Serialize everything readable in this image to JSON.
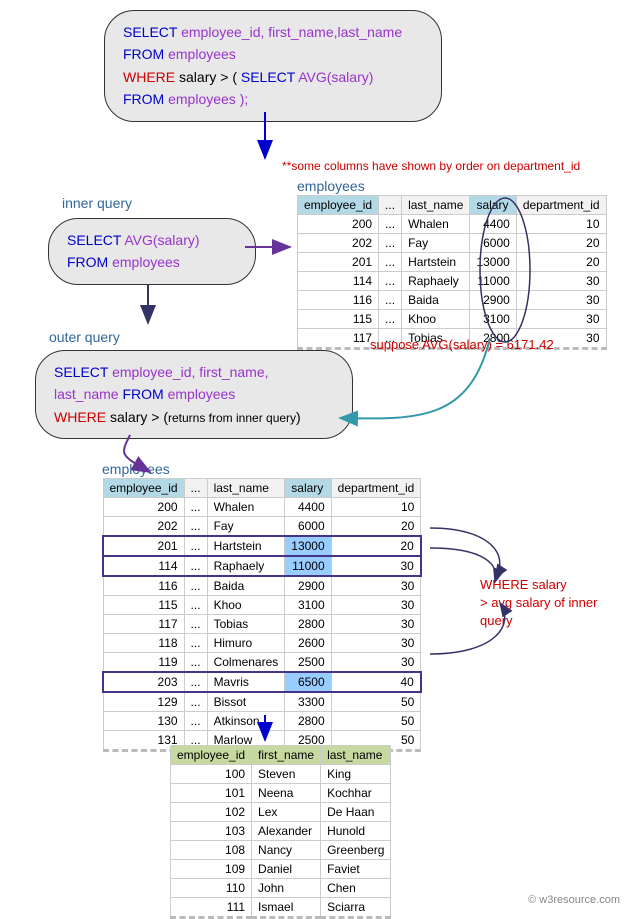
{
  "box1": {
    "select": "SELECT",
    "cols": " employee_id, first_name,last_name",
    "from": "FROM",
    "table": " employees",
    "where": "WHERE",
    "cond": " salary >  ( ",
    "sub_select": "SELECT ",
    "sub_func": "AVG(salary)",
    "from2": "FROM",
    "table2": " employees );"
  },
  "box2": {
    "select": "SELECT ",
    "func": "AVG(salary)",
    "from": "FROM",
    "table": " employees"
  },
  "box3": {
    "select": "SELECT",
    "cols": " employee_id, first_name,",
    "cols2": "last_name  ",
    "from": "FROM",
    "table": " employees",
    "where": "WHERE",
    "cond": " salary > (",
    "note": "returns from inner query",
    "close": ")"
  },
  "labels": {
    "inner": "inner query",
    "outer": "outer query",
    "emp1": "employees",
    "emp2": "employees",
    "note_top": "**some columns have shown by order on department_id",
    "avg_note": "suppose AVG(salary) = 6171.42",
    "where_note1": "WHERE salary",
    "where_note2": "> avg salary of inner query",
    "watermark": "© w3resource.com"
  },
  "table1": {
    "headers": [
      "employee_id",
      "...",
      "last_name",
      "salary",
      "department_id"
    ],
    "rows": [
      [
        "200",
        "...",
        "Whalen",
        "4400",
        "10"
      ],
      [
        "202",
        "...",
        "Fay",
        "6000",
        "20"
      ],
      [
        "201",
        "...",
        "Hartstein",
        "13000",
        "20"
      ],
      [
        "114",
        "...",
        "Raphaely",
        "11000",
        "30"
      ],
      [
        "116",
        "...",
        "Baida",
        "2900",
        "30"
      ],
      [
        "115",
        "...",
        "Khoo",
        "3100",
        "30"
      ],
      [
        "117",
        "...",
        "Tobias",
        "2800",
        "30"
      ]
    ]
  },
  "table2": {
    "headers": [
      "employee_id",
      "...",
      "last_name",
      "salary",
      "department_id"
    ],
    "rows": [
      {
        "d": [
          "200",
          "...",
          "Whalen",
          "4400",
          "10"
        ],
        "hl": false,
        "hlcell": null
      },
      {
        "d": [
          "202",
          "...",
          "Fay",
          "6000",
          "20"
        ],
        "hl": false,
        "hlcell": null
      },
      {
        "d": [
          "201",
          "...",
          "Hartstein",
          "13000",
          "20"
        ],
        "hl": true,
        "hlcell": 3
      },
      {
        "d": [
          "114",
          "...",
          "Raphaely",
          "11000",
          "30"
        ],
        "hl": true,
        "hlcell": 3
      },
      {
        "d": [
          "116",
          "...",
          "Baida",
          "2900",
          "30"
        ],
        "hl": false,
        "hlcell": null
      },
      {
        "d": [
          "115",
          "...",
          "Khoo",
          "3100",
          "30"
        ],
        "hl": false,
        "hlcell": null
      },
      {
        "d": [
          "117",
          "...",
          "Tobias",
          "2800",
          "30"
        ],
        "hl": false,
        "hlcell": null
      },
      {
        "d": [
          "118",
          "...",
          "Himuro",
          "2600",
          "30"
        ],
        "hl": false,
        "hlcell": null
      },
      {
        "d": [
          "119",
          "...",
          "Colmenares",
          "2500",
          "30"
        ],
        "hl": false,
        "hlcell": null
      },
      {
        "d": [
          "203",
          "...",
          "Mavris",
          "6500",
          "40"
        ],
        "hl": true,
        "hlcell": 3
      },
      {
        "d": [
          "129",
          "...",
          "Bissot",
          "3300",
          "50"
        ],
        "hl": false,
        "hlcell": null
      },
      {
        "d": [
          "130",
          "...",
          "Atkinson",
          "2800",
          "50"
        ],
        "hl": false,
        "hlcell": null
      },
      {
        "d": [
          "131",
          "...",
          "Marlow",
          "2500",
          "50"
        ],
        "hl": false,
        "hlcell": null
      }
    ]
  },
  "table3": {
    "headers": [
      "employee_id",
      "first_name",
      "last_name"
    ],
    "rows": [
      [
        "100",
        "Steven",
        "King"
      ],
      [
        "101",
        "Neena",
        "Kochhar"
      ],
      [
        "102",
        "Lex",
        "De Haan"
      ],
      [
        "103",
        "Alexander",
        "Hunold"
      ],
      [
        "108",
        "Nancy",
        "Greenberg"
      ],
      [
        "109",
        "Daniel",
        "Faviet"
      ],
      [
        "110",
        "John",
        "Chen"
      ],
      [
        "111",
        "Ismael",
        "Sciarra"
      ]
    ]
  },
  "style": {
    "blue": "#0000cc",
    "purple": "#9933cc",
    "red": "#cc0000",
    "teal": "#336699",
    "highlight_bg": "#99ccff",
    "row_border": "#443388"
  }
}
